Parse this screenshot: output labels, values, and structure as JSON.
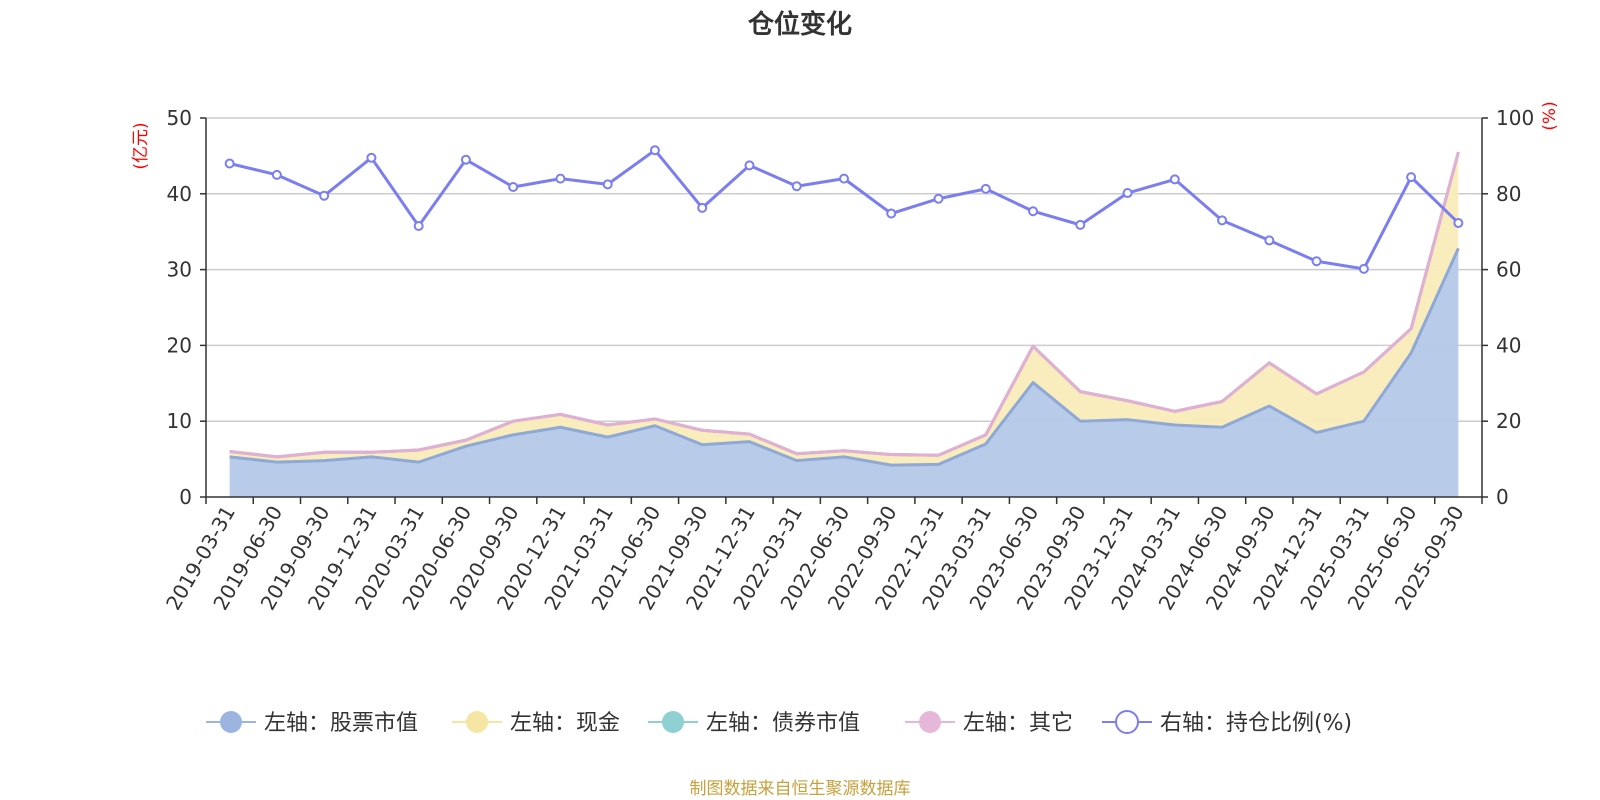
{
  "chart_data": {
    "type": "area",
    "title": "仓位变化",
    "left_axis": {
      "unit": "(亿元)",
      "ylim": [
        0,
        50
      ],
      "ticks": [
        0,
        10,
        20,
        30,
        40,
        50
      ]
    },
    "right_axis": {
      "unit": "(%)",
      "ylim": [
        0,
        100
      ],
      "ticks": [
        0,
        20,
        40,
        60,
        80,
        100
      ]
    },
    "categories": [
      "2019-03-31",
      "2019-06-30",
      "2019-09-30",
      "2019-12-31",
      "2020-03-31",
      "2020-06-30",
      "2020-09-30",
      "2020-12-31",
      "2021-03-31",
      "2021-06-30",
      "2021-09-30",
      "2021-12-31",
      "2022-03-31",
      "2022-06-30",
      "2022-09-30",
      "2022-12-31",
      "2023-03-31",
      "2023-06-30",
      "2023-09-30",
      "2023-12-31",
      "2024-03-31",
      "2024-06-30",
      "2024-09-30",
      "2024-12-31",
      "2025-03-31",
      "2025-06-30",
      "2025-09-30"
    ],
    "series": [
      {
        "name": "左轴：股票市值",
        "axis": "left",
        "color": "#9bb5e0",
        "values": [
          5.3,
          4.6,
          4.8,
          5.3,
          4.6,
          6.7,
          8.2,
          9.2,
          7.9,
          9.4,
          6.9,
          7.3,
          4.8,
          5.3,
          4.2,
          4.3,
          7.0,
          15.1,
          10.0,
          10.2,
          9.5,
          9.2,
          12.0,
          8.5,
          10.0,
          19.0,
          32.8
        ]
      },
      {
        "name": "左轴：现金",
        "axis": "left",
        "color": "#f7e6a3",
        "values": [
          0.7,
          0.7,
          1.1,
          0.6,
          1.6,
          0.8,
          1.8,
          1.7,
          1.6,
          0.9,
          1.9,
          1.0,
          0.9,
          0.8,
          1.4,
          1.2,
          1.2,
          4.8,
          3.9,
          2.5,
          1.8,
          3.4,
          5.7,
          5.1,
          6.5,
          3.2,
          12.7
        ]
      },
      {
        "name": "左轴：债券市值",
        "axis": "left",
        "color": "#8fd0d3",
        "values": [
          0,
          0,
          0,
          0,
          0,
          0,
          0,
          0,
          0,
          0,
          0,
          0,
          0,
          0,
          0,
          0,
          0,
          0,
          0,
          0,
          0,
          0,
          0,
          0,
          0,
          0,
          0
        ]
      },
      {
        "name": "左轴：其它",
        "axis": "left",
        "color": "#e5b8da",
        "values": [
          0,
          0,
          0,
          0,
          0,
          0,
          0,
          0,
          0,
          0,
          0,
          0,
          0,
          0,
          0,
          0,
          0,
          0,
          0,
          0,
          0,
          0,
          0,
          0,
          0,
          0,
          0
        ]
      },
      {
        "name": "右轴：持仓比例(%)",
        "axis": "right",
        "color": "#7a7ef0",
        "values": [
          88,
          85,
          79.5,
          89.5,
          71.5,
          89,
          81.8,
          84,
          82.5,
          91.5,
          76.3,
          87.5,
          82,
          84,
          74.8,
          78.7,
          81.3,
          75.4,
          71.8,
          80.2,
          83.8,
          73,
          67.7,
          62.2,
          60.2,
          84.4,
          72.3
        ]
      }
    ],
    "grid": true,
    "legend_position": "bottom",
    "source": "制图数据来自恒生聚源数据库"
  }
}
